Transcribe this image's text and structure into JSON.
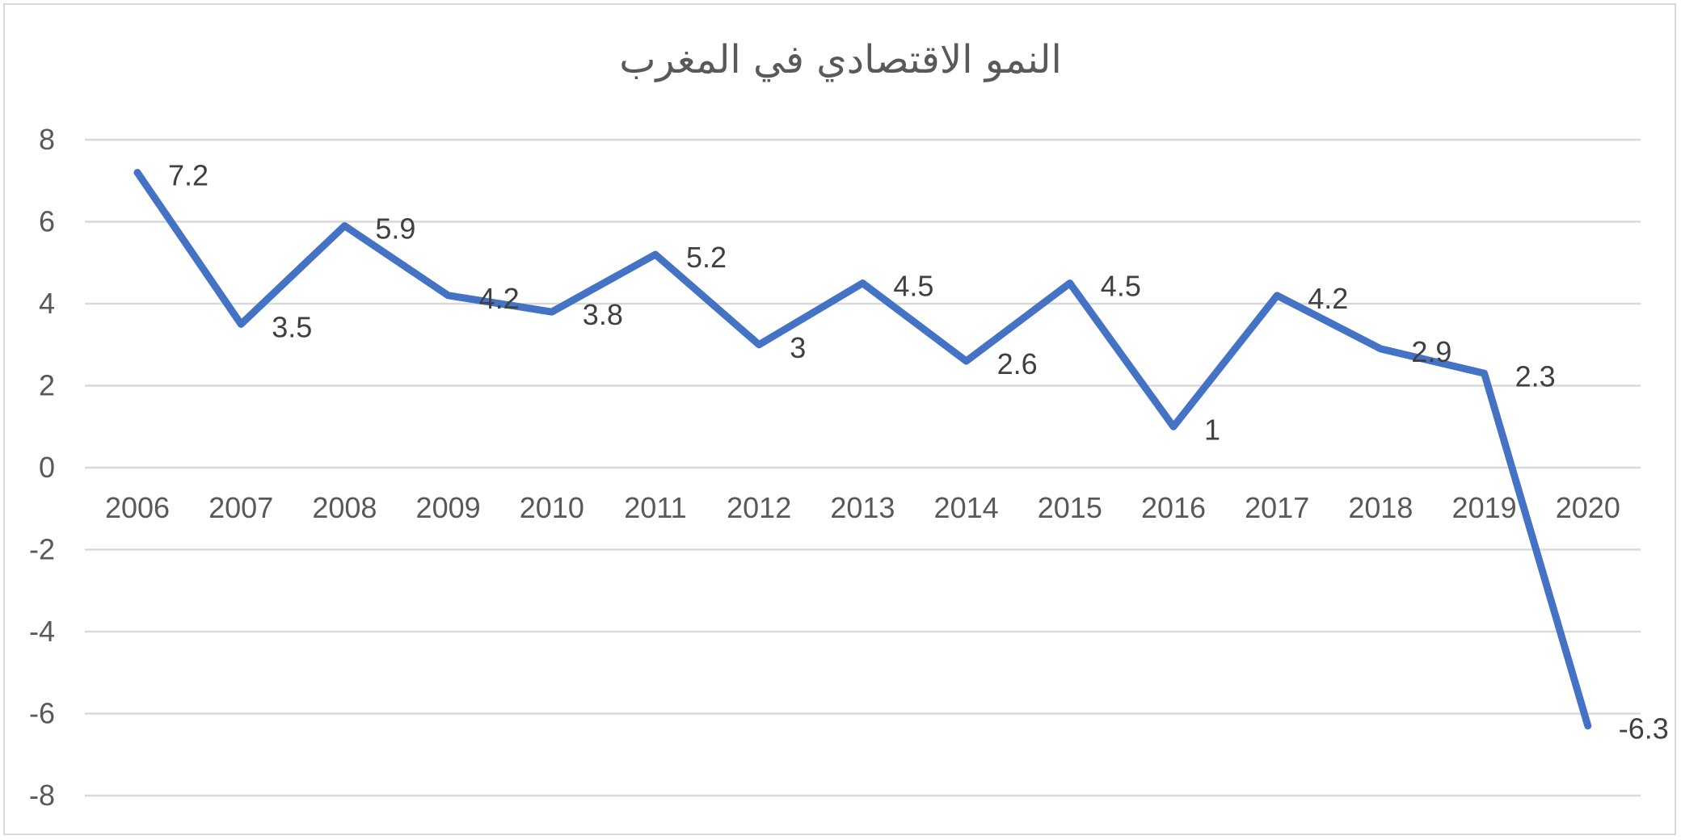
{
  "chart_data": {
    "type": "line",
    "title": "النمو الاقتصادي في المغرب",
    "xlabel": "",
    "ylabel": "",
    "categories": [
      "2006",
      "2007",
      "2008",
      "2009",
      "2010",
      "2011",
      "2012",
      "2013",
      "2014",
      "2015",
      "2016",
      "2017",
      "2018",
      "2019",
      "2020"
    ],
    "series": [
      {
        "values": [
          7.2,
          3.5,
          5.9,
          4.2,
          3.8,
          5.2,
          3,
          4.5,
          2.6,
          4.5,
          1,
          4.2,
          2.9,
          2.3,
          -6.3
        ],
        "labels": [
          "7.2",
          "3.5",
          "5.9",
          "4.2",
          "3.8",
          "5.2",
          "3",
          "4.5",
          "2.6",
          "4.5",
          "1",
          "4.2",
          "2.9",
          "2.3",
          "-6.3"
        ],
        "color": "#4472c4"
      }
    ],
    "ylim": [
      -8,
      8
    ],
    "yticks": [
      "8",
      "6",
      "4",
      "2",
      "0",
      "-2",
      "-4",
      "-6",
      "-8"
    ],
    "grid": true,
    "legend": "none",
    "data_labels": "right"
  }
}
